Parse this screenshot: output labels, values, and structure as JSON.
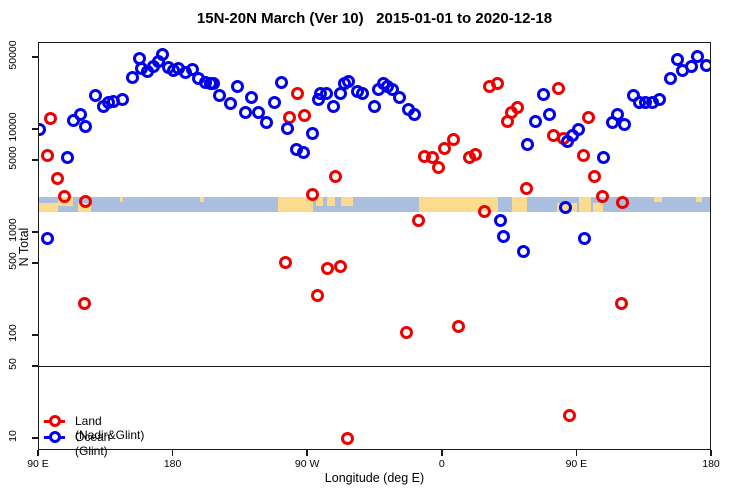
{
  "title": "15N-20N March (Ver 10)   2015-01-01 to 2020-12-18",
  "axes": {
    "x": {
      "label": "Longitude (deg E)",
      "range": [
        90,
        540
      ],
      "ticks": [
        {
          "value": 90,
          "label": "90 E"
        },
        {
          "value": 180,
          "label": "180"
        },
        {
          "value": 270,
          "label": "90 W"
        },
        {
          "value": 360,
          "label": "0"
        },
        {
          "value": 450,
          "label": "90 E"
        },
        {
          "value": 540,
          "label": "180"
        }
      ]
    },
    "y": {
      "label": "N Total",
      "scale": "log",
      "range": [
        10,
        60000
      ],
      "ticks": [
        10,
        50,
        100,
        500,
        1000,
        5000,
        10000,
        50000
      ]
    }
  },
  "reference_line": {
    "y_value": 50
  },
  "map_band": {
    "description": "15N-20N latitude world map strip",
    "value_range": [
      1600,
      2250
    ],
    "ocean_color": "#a9bfdd",
    "land_color": "#fbdb8e",
    "land_patches": [
      {
        "lon0": 90,
        "lon1": 102.5,
        "part": "bottom"
      },
      {
        "lon0": 103,
        "lon1": 113,
        "part": "top"
      },
      {
        "lon0": 116,
        "lon1": 125,
        "part": "bottom"
      },
      {
        "lon0": 144,
        "lon1": 146.5,
        "part": "speck-top"
      },
      {
        "lon0": 197.5,
        "lon1": 200,
        "part": "speck-top"
      },
      {
        "lon0": 249.5,
        "lon1": 273,
        "part": "full"
      },
      {
        "lon0": 275,
        "lon1": 280,
        "part": "top"
      },
      {
        "lon0": 282.5,
        "lon1": 288,
        "part": "top"
      },
      {
        "lon0": 292,
        "lon1": 300,
        "part": "top"
      },
      {
        "lon0": 344,
        "lon1": 397,
        "part": "full"
      },
      {
        "lon0": 406,
        "lon1": 416,
        "part": "full"
      },
      {
        "lon0": 436.5,
        "lon1": 450,
        "part": "bottom"
      },
      {
        "lon0": 451,
        "lon1": 459,
        "part": "full"
      },
      {
        "lon0": 460.5,
        "lon1": 467,
        "part": "bottom"
      },
      {
        "lon0": 501,
        "lon1": 506.5,
        "part": "speck-top"
      },
      {
        "lon0": 529.5,
        "lon1": 533.5,
        "part": "speck-top"
      }
    ]
  },
  "legend": [
    {
      "label": "Land (Nadir&Glint)",
      "color": "#ee0000"
    },
    {
      "label": "Ocean (Glint)",
      "color": "#0000ee"
    }
  ],
  "chart_data": {
    "type": "scatter",
    "x_units": "deg E (continuous 90 to 540)",
    "series": [
      {
        "name": "Land (Nadir&Glint)",
        "color": "#ee0000",
        "points": [
          [
            95.7,
            5600
          ],
          [
            97.7,
            13000
          ],
          [
            102.4,
            3400
          ],
          [
            107,
            2240
          ],
          [
            120.4,
            205
          ],
          [
            121,
            2000
          ],
          [
            255,
            512
          ],
          [
            257.5,
            13100
          ],
          [
            263,
            22400
          ],
          [
            267.6,
            13700
          ],
          [
            273,
            2390
          ],
          [
            276.3,
            250
          ],
          [
            283,
            457
          ],
          [
            288.3,
            3570
          ],
          [
            291.7,
            468
          ],
          [
            296.4,
            10.2
          ],
          [
            335.8,
            107
          ],
          [
            343.8,
            1310
          ],
          [
            347.8,
            5470
          ],
          [
            353.2,
            5370
          ],
          [
            357.2,
            4370
          ],
          [
            361.2,
            6540
          ],
          [
            367.2,
            8000
          ],
          [
            370.5,
            125
          ],
          [
            377.9,
            5370
          ],
          [
            381.9,
            5730
          ],
          [
            387.9,
            1600
          ],
          [
            391.3,
            26700
          ],
          [
            396.6,
            28000
          ],
          [
            403.3,
            12200
          ],
          [
            406,
            14900
          ],
          [
            410,
            16700
          ],
          [
            416,
            2730
          ],
          [
            434.1,
            8750
          ],
          [
            437.4,
            25500
          ],
          [
            440.8,
            8200
          ],
          [
            444.8,
            17
          ],
          [
            454.2,
            5600
          ],
          [
            457.5,
            13100
          ],
          [
            461.5,
            3500
          ],
          [
            466.9,
            2240
          ],
          [
            479.6,
            205
          ],
          [
            480.3,
            1960
          ]
        ]
      },
      {
        "name": "Ocean (Glint)",
        "color": "#0000ee",
        "points": [
          [
            90,
            10200
          ],
          [
            95.7,
            875
          ],
          [
            109,
            5370
          ],
          [
            113,
            12400
          ],
          [
            118,
            14100
          ],
          [
            121,
            10900
          ],
          [
            128,
            21400
          ],
          [
            133,
            17100
          ],
          [
            136.5,
            18300
          ],
          [
            140,
            19100
          ],
          [
            146,
            19600
          ],
          [
            152.5,
            32000
          ],
          [
            157,
            50000
          ],
          [
            158.5,
            39300
          ],
          [
            162.5,
            36700
          ],
          [
            166.5,
            41700
          ],
          [
            170,
            46600
          ],
          [
            172.5,
            54000
          ],
          [
            176.5,
            40200
          ],
          [
            180,
            37600
          ],
          [
            183,
            39300
          ],
          [
            188,
            36000
          ],
          [
            192.5,
            38400
          ],
          [
            196.5,
            31300
          ],
          [
            201.5,
            28700
          ],
          [
            204.5,
            28000
          ],
          [
            206.5,
            28000
          ],
          [
            211,
            21400
          ],
          [
            218,
            17900
          ],
          [
            223,
            26700
          ],
          [
            228,
            14900
          ],
          [
            232,
            20500
          ],
          [
            237,
            14900
          ],
          [
            242,
            11700
          ],
          [
            247.5,
            18700
          ],
          [
            252,
            28700
          ],
          [
            256,
            10400
          ],
          [
            262,
            6400
          ],
          [
            267,
            6000
          ],
          [
            273,
            9200
          ],
          [
            277,
            19600
          ],
          [
            278.5,
            22400
          ],
          [
            282.5,
            22400
          ],
          [
            287,
            17100
          ],
          [
            291.5,
            22400
          ],
          [
            294,
            28000
          ],
          [
            297,
            29300
          ],
          [
            303,
            23400
          ],
          [
            306.5,
            22400
          ],
          [
            314,
            17100
          ],
          [
            317,
            24500
          ],
          [
            320.5,
            28000
          ],
          [
            323,
            26700
          ],
          [
            326.5,
            24500
          ],
          [
            331,
            20500
          ],
          [
            337,
            15700
          ],
          [
            341,
            14200
          ],
          [
            398.5,
            1330
          ],
          [
            400.5,
            935
          ],
          [
            414,
            655
          ],
          [
            416.5,
            7180
          ],
          [
            422,
            12000
          ],
          [
            427.5,
            21900
          ],
          [
            431.5,
            14000
          ],
          [
            442,
            1750
          ],
          [
            443.5,
            7800
          ],
          [
            447,
            8750
          ],
          [
            451,
            10200
          ],
          [
            455,
            875
          ],
          [
            467.5,
            5370
          ],
          [
            473.5,
            11700
          ],
          [
            477,
            14200
          ],
          [
            481.5,
            11400
          ],
          [
            487.5,
            21400
          ],
          [
            491.5,
            18300
          ],
          [
            495.5,
            18300
          ],
          [
            500.5,
            18700
          ],
          [
            505,
            19600
          ],
          [
            512.5,
            31300
          ],
          [
            517,
            48900
          ],
          [
            520.5,
            37600
          ],
          [
            526,
            41000
          ],
          [
            530.5,
            52000
          ],
          [
            536,
            42000
          ]
        ]
      }
    ]
  }
}
